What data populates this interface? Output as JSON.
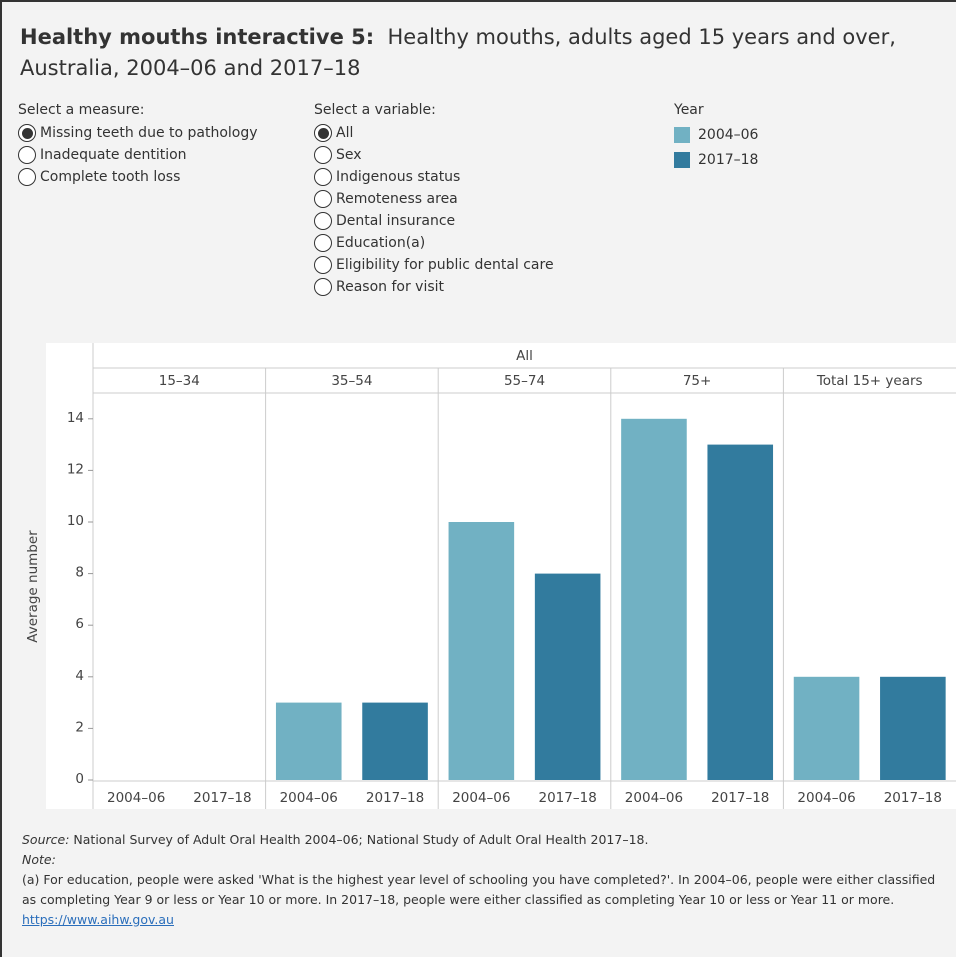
{
  "header": {
    "title_bold": "Healthy mouths interactive 5:",
    "title": "Healthy mouths, adults aged 15 years and over, Australia, 2004–06 and 2017–18"
  },
  "controls": [
    {
      "label": "Select a measure:",
      "selected": 0,
      "options": [
        "Missing teeth due to pathology",
        "Inadequate dentition",
        "Complete tooth loss"
      ]
    },
    {
      "label": "Select a variable:",
      "selected": 0,
      "options": [
        "All",
        "Sex",
        "Indigenous status",
        "Remoteness area",
        "Dental insurance",
        "Education(a)",
        "Eligibility for public dental care",
        "Reason for visit"
      ]
    }
  ],
  "chart_data": {
    "type": "bar",
    "panel_header": "All",
    "legend_title": "Year",
    "y_label": "Average number",
    "categories": [
      "15–34",
      "35–54",
      "55–74",
      "75+",
      "Total 15+ years"
    ],
    "series": [
      {
        "name": "2004–06",
        "color": "#71b1c3",
        "values": [
          0,
          3,
          10,
          14,
          4
        ]
      },
      {
        "name": "2017–18",
        "color": "#327b9e",
        "values": [
          0,
          3,
          8,
          13,
          4
        ]
      }
    ],
    "ylim": [
      0,
      15
    ],
    "yticks": [
      0,
      2,
      4,
      6,
      8,
      10,
      12,
      14
    ]
  },
  "footer": {
    "source_label": "Source:",
    "source": "National Survey of Adult Oral Health 2004–06; National Study of Adult Oral Health 2017–18.",
    "note_label": "Note:",
    "note": "(a) For education, people were asked 'What is the highest year level of schooling you have completed?'. In 2004–06, people were either classified as completing Year 9 or less or Year 10 or more. In 2017–18, people were either classified as completing Year 10 or less or Year 11 or more.",
    "link": "https://www.aihw.gov.au"
  }
}
